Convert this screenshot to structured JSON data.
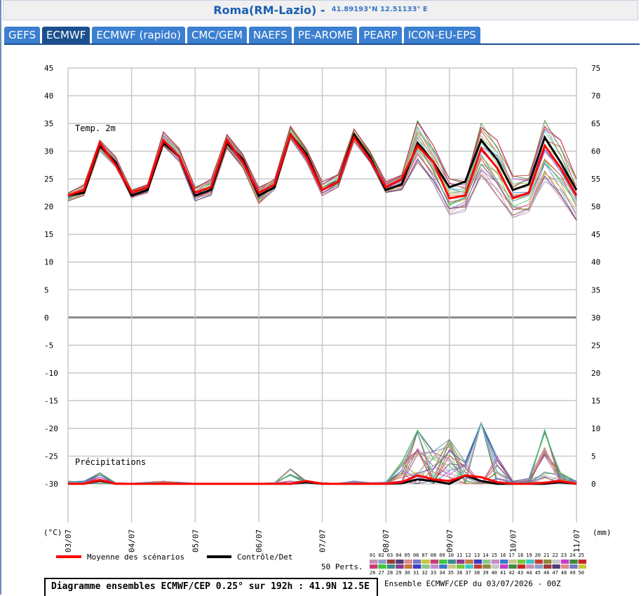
{
  "header": {
    "location": "Roma(RM-Lazio) -",
    "coordinates": "41.89193°N 12.51133° E"
  },
  "tabs": [
    {
      "label": "GEFS",
      "active": false
    },
    {
      "label": "ECMWF",
      "active": true
    },
    {
      "label": "ECMWF (rapido)",
      "active": false
    },
    {
      "label": "CMC/GEM",
      "active": false
    },
    {
      "label": "NAEFS",
      "active": false
    },
    {
      "label": "PE-AROME",
      "active": false
    },
    {
      "label": "PEARP",
      "active": false
    },
    {
      "label": "ICON-EU-EPS",
      "active": false
    }
  ],
  "footer": {
    "info_title": "Diagramme ensembles ECMWF/CEP 0.25° sur 192h : 41.9N 12.5E",
    "info_right": "Ensemble ECMWF/CEP du 03/07/2026 - 00Z"
  },
  "chart_data": {
    "type": "line",
    "left_unit": "(°C)",
    "right_unit": "(mm)",
    "temp_label": "Temp. 2m",
    "precip_label": "Précipitations",
    "legend": {
      "mean": "Moyenne des scénarios",
      "control": "Contrôle/Det",
      "members_label": "50 Perts.",
      "members_top": [
        "01",
        "02",
        "03",
        "04",
        "05",
        "06",
        "07",
        "08",
        "09",
        "10",
        "11",
        "12",
        "13",
        "14",
        "15",
        "16",
        "17",
        "18",
        "19",
        "20",
        "21",
        "22",
        "23",
        "24",
        "25"
      ],
      "members_bottom": [
        "26",
        "27",
        "28",
        "29",
        "30",
        "31",
        "32",
        "33",
        "34",
        "35",
        "36",
        "37",
        "38",
        "39",
        "40",
        "41",
        "42",
        "43",
        "44",
        "45",
        "46",
        "47",
        "48",
        "49",
        "50"
      ]
    },
    "colors": {
      "mean": "#ff0000",
      "control": "#000000",
      "grid": "#c8c8c8",
      "zero": "#888888"
    },
    "member_colors": [
      "#c890b4",
      "#8ca0c8",
      "#a03c3c",
      "#503c78",
      "#dc8c8c",
      "#7878c8",
      "#c8c83c",
      "#c83c78",
      "#3cc83c",
      "#3c8c8c",
      "#8c3c8c",
      "#c8783c",
      "#3c3cc8",
      "#8cc88c",
      "#c88cc8",
      "#3c78c8",
      "#c8c88c",
      "#78c83c",
      "#3cc8c8",
      "#c83c3c",
      "#8c8c3c",
      "#c8c8c8",
      "#c83cc8",
      "#3c8c3c",
      "#c82828"
    ],
    "y_left": {
      "min": -30,
      "max": 45,
      "ticks": [
        45,
        40,
        35,
        30,
        25,
        20,
        15,
        10,
        5,
        0,
        -5,
        -10,
        -15,
        -20,
        -25,
        -30
      ]
    },
    "y_right": {
      "ticks": [
        75,
        70,
        65,
        60,
        55,
        50,
        45,
        40,
        35,
        30,
        25,
        20,
        15,
        10,
        5,
        0
      ]
    },
    "x_labels": [
      "03/07",
      "04/07",
      "05/07",
      "06/07",
      "07/07",
      "08/07",
      "09/07",
      "10/07",
      "11/07"
    ],
    "x_ticks_hours": [
      0,
      24,
      48,
      72,
      96,
      120,
      144,
      168,
      192
    ],
    "time_hours": [
      0,
      6,
      12,
      18,
      24,
      30,
      36,
      42,
      48,
      54,
      60,
      66,
      72,
      78,
      84,
      90,
      96,
      102,
      108,
      114,
      120,
      126,
      132,
      138,
      144,
      150,
      156,
      162,
      168,
      174,
      180,
      186,
      192
    ],
    "temperature": {
      "mean": [
        22,
        23,
        31.5,
        27.5,
        22.5,
        23.5,
        32,
        29,
        22.5,
        23.5,
        32,
        28,
        22.5,
        24,
        33,
        29,
        23,
        24.5,
        32.5,
        28.5,
        23.5,
        25,
        31,
        28,
        21.5,
        22,
        30.5,
        27,
        21.5,
        22.5,
        31,
        27,
        22
      ],
      "control": [
        22,
        22.5,
        31,
        28,
        22,
        23,
        31.5,
        29,
        22,
        23,
        31.5,
        28.5,
        22,
        23.5,
        33,
        29.5,
        23,
        24.5,
        33,
        29,
        23,
        24,
        31.5,
        28,
        23.5,
        24.5,
        32,
        28.5,
        23,
        24,
        32.5,
        28,
        23
      ],
      "max": [
        22.5,
        24,
        32,
        29,
        23,
        24,
        33.5,
        30.5,
        23.5,
        25,
        33,
        29.5,
        23.5,
        25,
        34.5,
        30.5,
        24.5,
        26,
        34,
        30,
        24.5,
        26,
        35.5,
        31,
        25,
        25,
        35,
        32,
        25.5,
        26,
        35.5,
        32,
        25
      ],
      "min": [
        21,
        22,
        30,
        27,
        21.5,
        22.5,
        31,
        28,
        21,
        22,
        30.5,
        27,
        20.5,
        23,
        32,
        28,
        22,
        23.5,
        31.5,
        28,
        22.5,
        23,
        28,
        24,
        18.5,
        19,
        25.5,
        22,
        18,
        18.5,
        24.5,
        21.5,
        17.5
      ]
    },
    "precipitation": {
      "mean": [
        0,
        0,
        0.7,
        0,
        0,
        0,
        0,
        0,
        0,
        0,
        0,
        0,
        0,
        0,
        0,
        0.5,
        0,
        0,
        0,
        0,
        0,
        0.3,
        1.5,
        0.8,
        0.5,
        1.5,
        1.2,
        0.3,
        0,
        0,
        0.2,
        0.5,
        0
      ],
      "control": [
        0,
        0,
        0.6,
        0,
        0,
        0,
        0,
        0,
        0,
        0,
        0,
        0,
        0,
        0,
        0,
        0.3,
        0,
        0,
        0,
        0,
        0,
        0.1,
        0.8,
        0.5,
        0,
        1.5,
        0.5,
        0,
        0,
        0,
        0,
        0.3,
        0
      ],
      "max": [
        0.5,
        0.5,
        2,
        0.2,
        0.1,
        0.3,
        0.5,
        0.3,
        0.1,
        0.1,
        0.1,
        0.1,
        0.1,
        0.2,
        2.8,
        0.5,
        0.2,
        0.1,
        0.5,
        0.2,
        0.3,
        4,
        10,
        6,
        8,
        4,
        11,
        5,
        0.5,
        1,
        10,
        2,
        0.5
      ]
    }
  }
}
